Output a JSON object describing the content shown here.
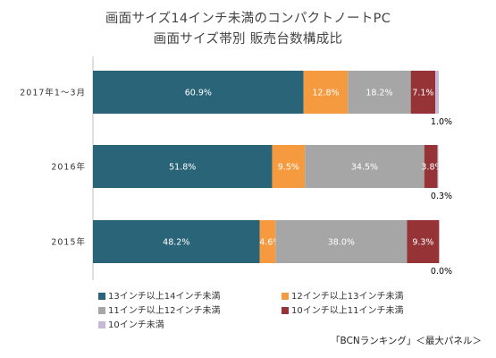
{
  "chart_data": {
    "type": "bar",
    "orientation": "horizontal",
    "stacked": true,
    "normalized_percent": true,
    "title": "画面サイズ14インチ未満のコンパクトノートPC",
    "subtitle": "画面サイズ帯別 販売台数構成比",
    "categories": [
      "2017年1～3月",
      "2016年",
      "2015年"
    ],
    "series": [
      {
        "name": "13インチ以上14インチ未満",
        "color": "#2a6478",
        "values": [
          60.9,
          51.8,
          48.2
        ],
        "labels": [
          "60.9%",
          "51.8%",
          "48.2%"
        ]
      },
      {
        "name": "12インチ以上13インチ未満",
        "color": "#f59a3f",
        "values": [
          12.8,
          9.5,
          4.6
        ],
        "labels": [
          "12.8%",
          "9.5%",
          "4.6%"
        ]
      },
      {
        "name": "11インチ以上12インチ未満",
        "color": "#a6a6a6",
        "values": [
          18.2,
          34.5,
          38.0
        ],
        "labels": [
          "18.2%",
          "34.5%",
          "38.0%"
        ]
      },
      {
        "name": "10インチ以上11インチ未満",
        "color": "#953337",
        "values": [
          7.1,
          3.8,
          9.3
        ],
        "labels": [
          "7.1%",
          "3.8%",
          "9.3%"
        ]
      },
      {
        "name": "10インチ未満",
        "color": "#c7b8d8",
        "values": [
          1.0,
          0.3,
          0.0
        ],
        "labels": [
          "1.0%",
          "0.3%",
          "0.0%"
        ]
      }
    ],
    "xlim": [
      0,
      100
    ],
    "grid": false,
    "legend_position": "bottom"
  },
  "source": "「BCNランキング」＜最大パネル＞"
}
